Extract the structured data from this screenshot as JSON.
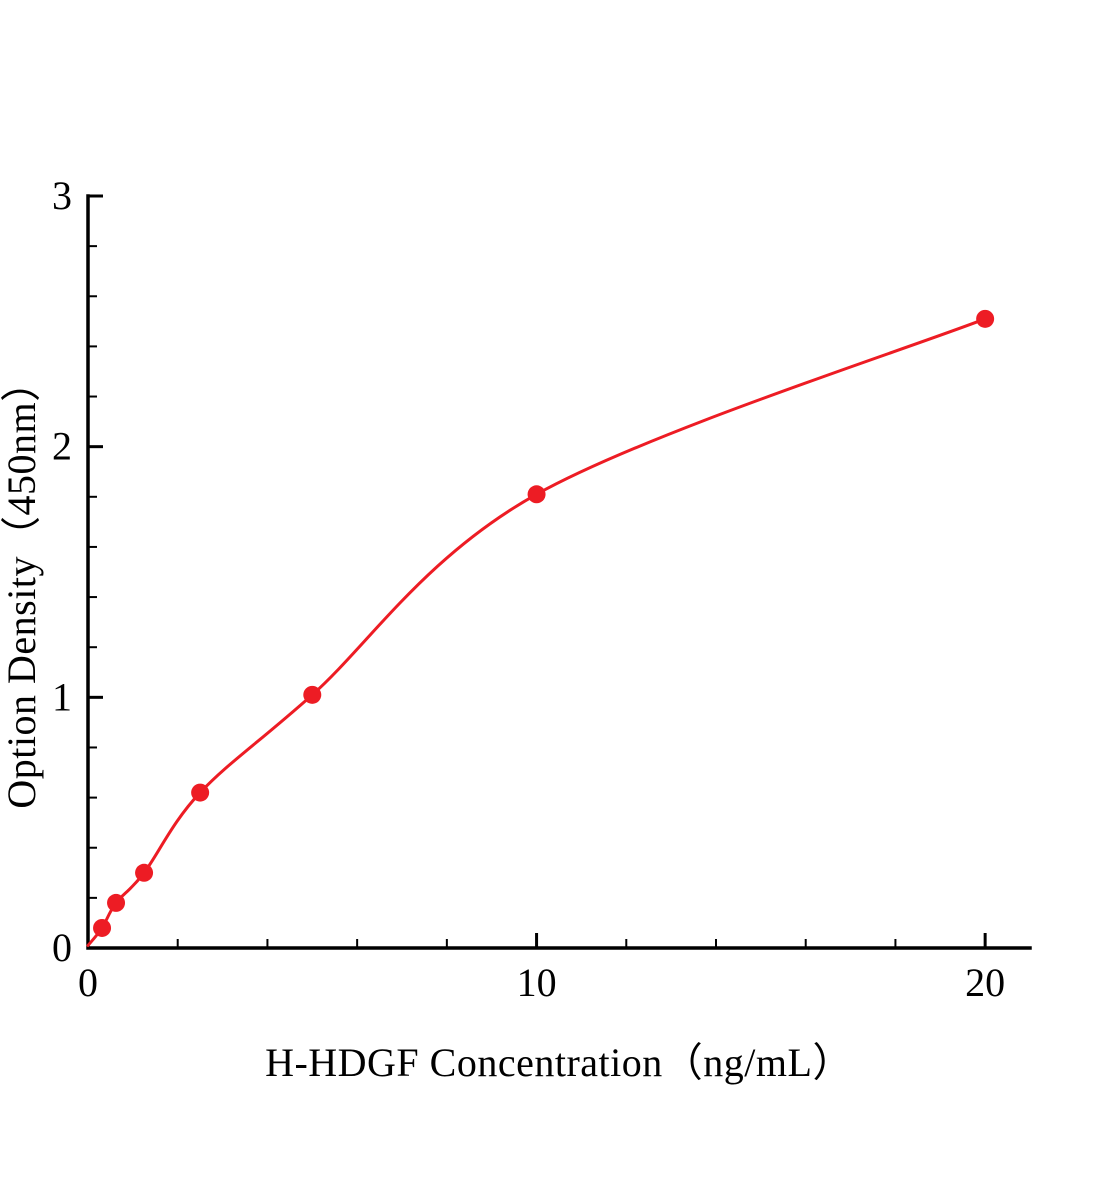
{
  "page": {
    "background": "#ffffff"
  },
  "chart_data": {
    "type": "scatter",
    "title": "",
    "xlabel": "H-HDGF Concentration（ng/mL）",
    "ylabel": "Option Density（450nm）",
    "x": [
      0.313,
      0.625,
      1.25,
      2.5,
      5,
      10,
      20
    ],
    "y": [
      0.08,
      0.18,
      0.3,
      0.62,
      1.01,
      1.81,
      2.51
    ],
    "curve_origin": [
      0,
      0.01
    ],
    "xlim": [
      0,
      21
    ],
    "ylim": [
      0,
      3
    ],
    "xticks": [
      0,
      10,
      20
    ],
    "yticks": [
      0,
      1,
      2,
      3
    ],
    "x_minor_step": 2,
    "y_minor_step": 0.2,
    "grid": false,
    "legend": "none",
    "colors": {
      "curve": "#ed1c24",
      "marker": "#ed1c24",
      "axis": "#000000",
      "tick_label": "#000000"
    },
    "marker_radius": 9,
    "curve_width": 3
  }
}
